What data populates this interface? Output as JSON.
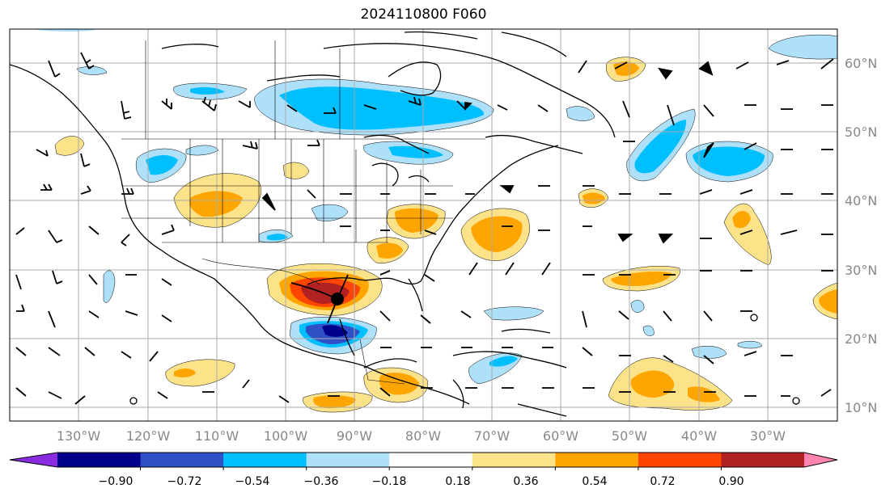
{
  "title": "2024110800 F060",
  "map": {
    "lon_labels": [
      "130°W",
      "120°W",
      "110°W",
      "100°W",
      "90°W",
      "80°W",
      "70°W",
      "60°W",
      "50°W",
      "40°W",
      "30°W"
    ],
    "lat_labels": [
      "60°N",
      "50°N",
      "40°N",
      "30°N",
      "20°N",
      "10°N"
    ],
    "storm_marker": "low-center-dot"
  },
  "colorbar": {
    "tick_labels": [
      "−0.90",
      "−0.72",
      "−0.54",
      "−0.36",
      "−0.18",
      "0.18",
      "0.36",
      "0.54",
      "0.72",
      "0.90"
    ],
    "colors": [
      "#8a2be2",
      "#00008b",
      "#3050c8",
      "#00bfff",
      "#aee0fa",
      "#ffffff",
      "#fce38a",
      "#ffa500",
      "#ff4500",
      "#b22222",
      "#ff85b0"
    ],
    "extend": "both"
  },
  "colors": {
    "coastline": "#000000",
    "grid": "#aaaaaa",
    "axis_label": "#888888"
  }
}
